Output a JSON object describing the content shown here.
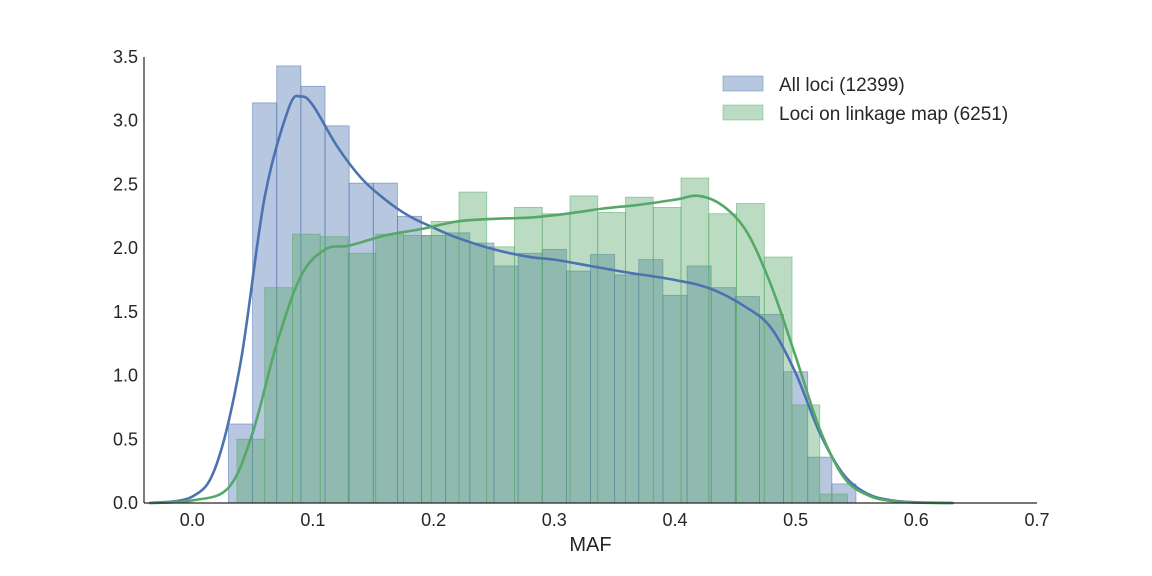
{
  "chart_data": {
    "type": "histogram",
    "title": "",
    "xlabel": "MAF",
    "ylabel": "",
    "xlim": [
      -0.04,
      0.7
    ],
    "ylim": [
      0,
      3.5
    ],
    "xticks": [
      0.0,
      0.1,
      0.2,
      0.3,
      0.4,
      0.5,
      0.6,
      0.7
    ],
    "xtick_labels": [
      "0.0",
      "0.1",
      "0.2",
      "0.3",
      "0.4",
      "0.5",
      "0.6",
      "0.7"
    ],
    "yticks": [
      0.0,
      0.5,
      1.0,
      1.5,
      2.0,
      2.5,
      3.0,
      3.5
    ],
    "ytick_labels": [
      "0.0",
      "0.5",
      "1.0",
      "1.5",
      "2.0",
      "2.5",
      "3.0",
      "3.5"
    ],
    "grid": false,
    "legend_position": "top-right",
    "series": [
      {
        "name": "All loci (12399)",
        "color": "#4c72b0",
        "bin_edges": [
          0.03,
          0.05,
          0.07,
          0.09,
          0.11,
          0.13,
          0.15,
          0.17,
          0.19,
          0.21,
          0.23,
          0.25,
          0.27,
          0.29,
          0.31,
          0.33,
          0.35,
          0.37,
          0.39,
          0.41,
          0.43,
          0.45,
          0.47,
          0.49,
          0.51,
          0.53,
          0.55
        ],
        "values": [
          0.62,
          3.14,
          3.43,
          3.27,
          2.96,
          2.51,
          2.51,
          2.25,
          2.1,
          2.12,
          2.04,
          1.86,
          1.96,
          1.99,
          1.82,
          1.95,
          1.79,
          1.91,
          1.63,
          1.86,
          1.69,
          1.62,
          1.48,
          1.03,
          0.36,
          0.15
        ],
        "kde_x": [
          -0.035,
          0.0,
          0.02,
          0.04,
          0.06,
          0.08,
          0.09,
          0.1,
          0.12,
          0.14,
          0.16,
          0.18,
          0.2,
          0.22,
          0.25,
          0.28,
          0.3,
          0.33,
          0.36,
          0.4,
          0.43,
          0.46,
          0.48,
          0.5,
          0.52,
          0.54,
          0.56,
          0.58,
          0.6,
          0.63
        ],
        "kde_y": [
          0.0,
          0.05,
          0.3,
          1.1,
          2.4,
          3.1,
          3.19,
          3.12,
          2.8,
          2.55,
          2.38,
          2.25,
          2.16,
          2.08,
          1.99,
          1.93,
          1.91,
          1.86,
          1.81,
          1.75,
          1.68,
          1.53,
          1.37,
          1.02,
          0.55,
          0.22,
          0.07,
          0.02,
          0.005,
          0.0
        ]
      },
      {
        "name": "Loci on linkage map (6251)",
        "color": "#55a868",
        "bin_edges": [
          0.037,
          0.06,
          0.083,
          0.106,
          0.129,
          0.152,
          0.175,
          0.198,
          0.221,
          0.244,
          0.267,
          0.29,
          0.313,
          0.336,
          0.359,
          0.382,
          0.405,
          0.428,
          0.451,
          0.474,
          0.497,
          0.52,
          0.543
        ],
        "values": [
          0.5,
          1.69,
          2.11,
          2.09,
          1.96,
          2.11,
          2.1,
          2.21,
          2.44,
          2.01,
          2.32,
          2.27,
          2.41,
          2.28,
          2.4,
          2.32,
          2.55,
          2.27,
          2.35,
          1.93,
          0.77,
          0.07
        ],
        "kde_x": [
          -0.035,
          0.0,
          0.03,
          0.05,
          0.07,
          0.09,
          0.11,
          0.13,
          0.16,
          0.19,
          0.22,
          0.25,
          0.28,
          0.31,
          0.34,
          0.37,
          0.4,
          0.42,
          0.44,
          0.46,
          0.48,
          0.5,
          0.52,
          0.54,
          0.56,
          0.58,
          0.6,
          0.63
        ],
        "kde_y": [
          0.0,
          0.02,
          0.12,
          0.55,
          1.25,
          1.78,
          1.99,
          2.02,
          2.1,
          2.15,
          2.21,
          2.23,
          2.24,
          2.27,
          2.31,
          2.34,
          2.38,
          2.41,
          2.33,
          2.12,
          1.7,
          1.15,
          0.58,
          0.2,
          0.06,
          0.015,
          0.003,
          0.0
        ]
      }
    ]
  }
}
